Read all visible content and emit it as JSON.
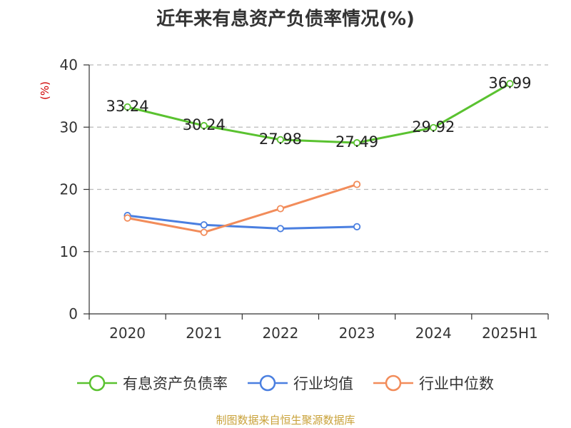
{
  "title": "近年来有息资产负债率情况(%)",
  "source": "制图数据来自恒生聚源数据库",
  "colors": {
    "series_main": "#5ac230",
    "series_avg": "#4a7fe0",
    "series_median": "#f28c5a",
    "grid": "#bbbbbb",
    "axis": "#333333",
    "source": "#c9a23a"
  },
  "chart_data": {
    "type": "line",
    "ylabel": "(%)",
    "ylim": [
      0,
      40
    ],
    "yticks": [
      "0",
      "10",
      "20",
      "30",
      "40"
    ],
    "categories": [
      "2020",
      "2021",
      "2022",
      "2023",
      "2024",
      "2025H1"
    ],
    "grid": "horizontal dashed",
    "legend_position": "bottom",
    "series": [
      {
        "name": "有息资产负债率",
        "color_key": "series_main",
        "values": [
          33.24,
          30.24,
          27.98,
          27.49,
          29.92,
          36.99
        ],
        "labels": [
          "33.24",
          "30.24",
          "27.98",
          "27.49",
          "29.92",
          "36.99"
        ]
      },
      {
        "name": "行业均值",
        "color_key": "series_avg",
        "values": [
          15.8,
          14.3,
          13.7,
          14.0,
          null,
          null
        ]
      },
      {
        "name": "行业中位数",
        "color_key": "series_median",
        "values": [
          15.4,
          13.1,
          16.9,
          20.8,
          null,
          null
        ]
      }
    ]
  }
}
